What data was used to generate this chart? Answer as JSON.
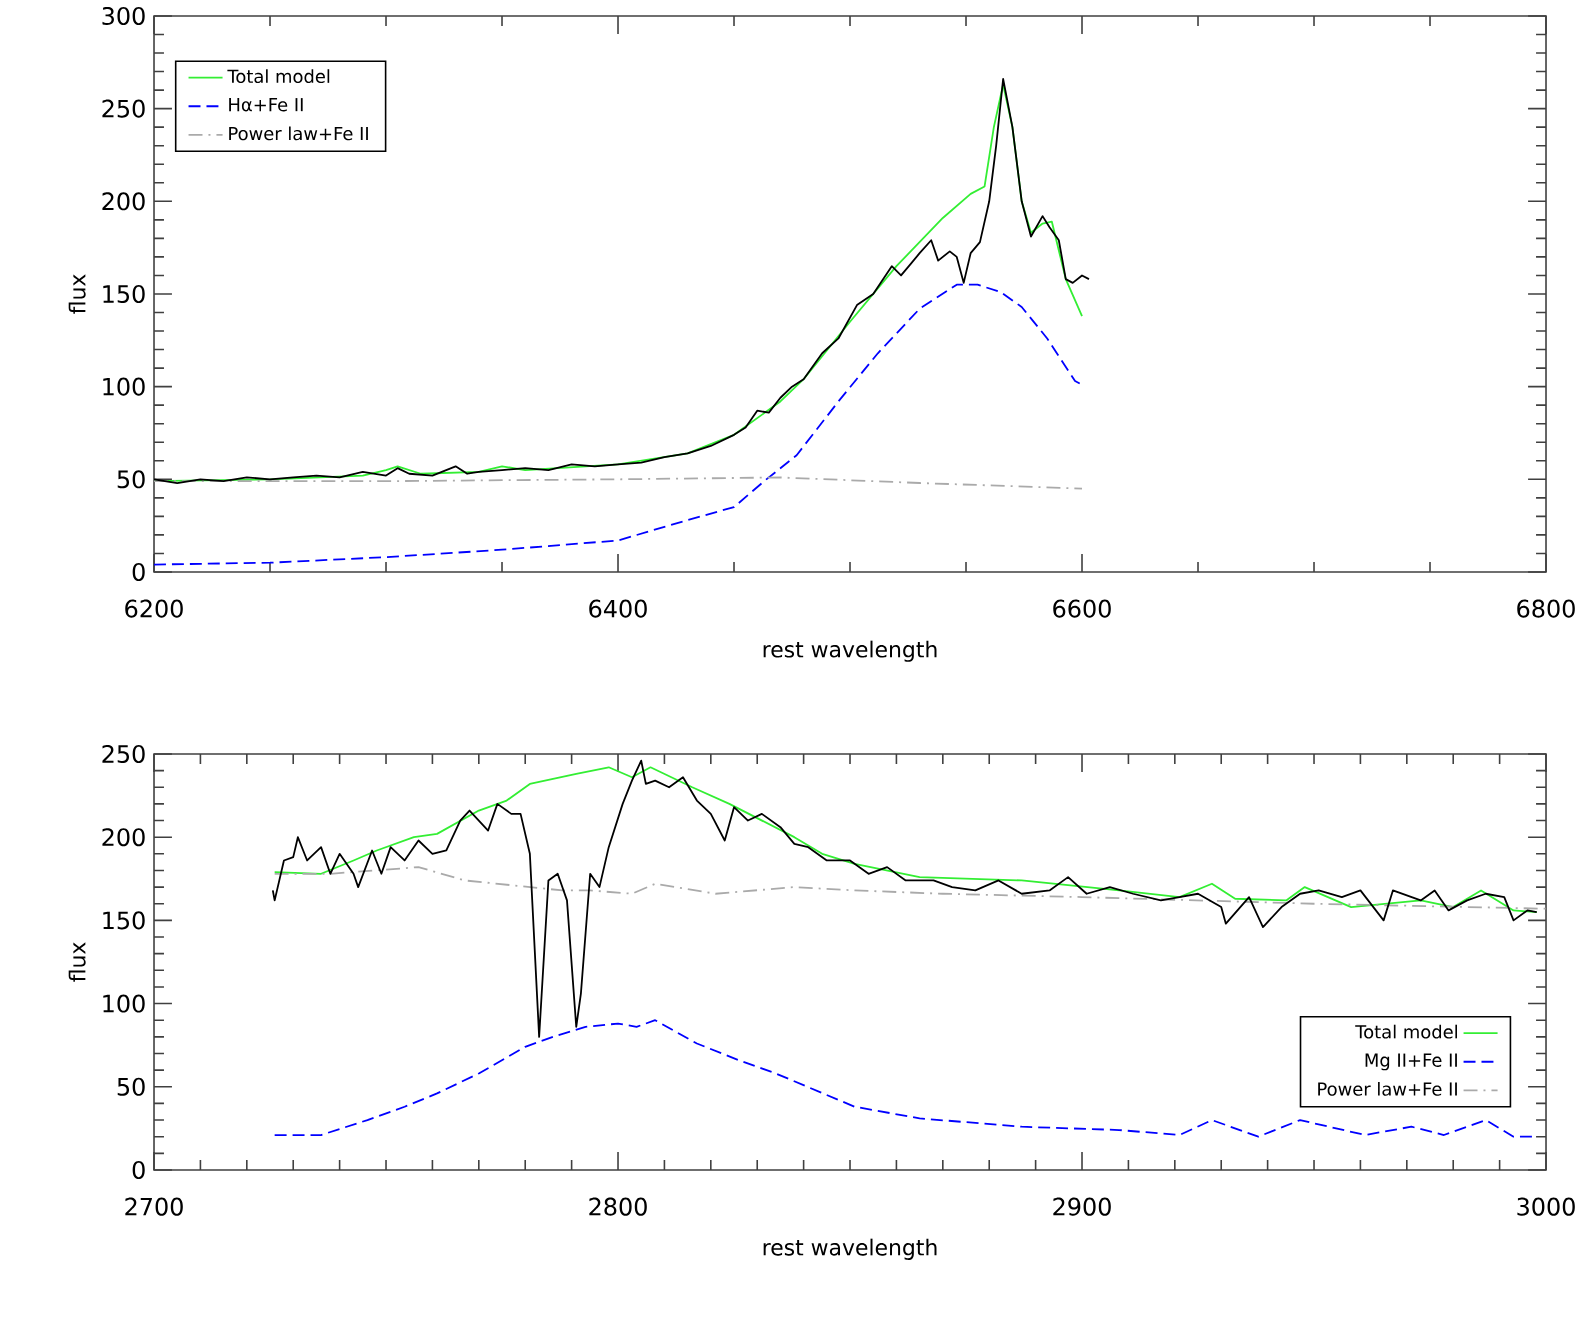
{
  "chart_data": [
    {
      "type": "line",
      "xlabel": "rest wavelength",
      "ylabel": "flux",
      "xlim": [
        6200,
        6800
      ],
      "ylim": [
        0,
        300
      ],
      "xticks": [
        6200,
        6400,
        6600,
        6800
      ],
      "yticks": [
        0,
        50,
        100,
        150,
        200,
        250,
        300
      ],
      "legend": "top left",
      "series": [
        {
          "color": "#000000",
          "line_style": "solid",
          "x": [
            6200,
            6210,
            6220,
            6230,
            6240,
            6250,
            6260,
            6270,
            6280,
            6290,
            6300,
            6305,
            6310,
            6320,
            6330,
            6335,
            6340,
            6350,
            6360,
            6370,
            6380,
            6390,
            6400,
            6410,
            6420,
            6430,
            6440,
            6450,
            6455,
            6460,
            6465,
            6470,
            6475,
            6480,
            6488,
            6495,
            6503,
            6510,
            6518,
            6522,
            6526,
            6530,
            6535,
            6538,
            6543,
            6546,
            6549,
            6552,
            6556,
            6560,
            6563,
            6566,
            6570,
            6574,
            6578,
            6583,
            6586,
            6590,
            6593,
            6596,
            6600,
            6603
          ],
          "values": [
            50,
            48,
            50,
            49,
            51,
            50,
            51,
            52,
            51,
            54,
            52,
            56,
            53,
            52,
            57,
            53,
            54,
            55,
            56,
            55,
            58,
            57,
            58,
            59,
            62,
            64,
            68,
            74,
            78,
            87,
            86,
            94,
            100,
            104,
            118,
            126,
            144,
            150,
            165,
            160,
            166,
            172,
            179,
            168,
            173,
            170,
            156,
            172,
            178,
            200,
            230,
            266,
            240,
            200,
            181,
            192,
            186,
            179,
            158,
            156,
            160,
            158
          ]
        },
        {
          "name": "Total model",
          "color": "#33ee33",
          "line_style": "solid",
          "x": [
            6200,
            6250,
            6290,
            6300,
            6305,
            6315,
            6340,
            6350,
            6360,
            6400,
            6430,
            6450,
            6470,
            6480,
            6500,
            6520,
            6540,
            6552,
            6558,
            6562,
            6566,
            6570,
            6574,
            6578,
            6583,
            6587,
            6593,
            6600
          ],
          "values": [
            49,
            50,
            52,
            55,
            57,
            53,
            54,
            57,
            55,
            58,
            64,
            74,
            92,
            104,
            135,
            165,
            191,
            204,
            208,
            240,
            263,
            240,
            200,
            183,
            188,
            189,
            158,
            138
          ]
        },
        {
          "name": "Hα+Fe II",
          "color": "#0000ff",
          "line_style": "dashed",
          "x": [
            6200,
            6250,
            6300,
            6350,
            6400,
            6430,
            6450,
            6463,
            6477,
            6495,
            6512,
            6530,
            6546,
            6555,
            6565,
            6574,
            6585,
            6597,
            6600
          ],
          "values": [
            4,
            5,
            8,
            12,
            17,
            28,
            35,
            49,
            63,
            92,
            118,
            142,
            155,
            155,
            151,
            143,
            126,
            103,
            101
          ]
        },
        {
          "name": "Power law+Fe II",
          "color": "#aaaaaa",
          "line_style": "dashdot",
          "x": [
            6200,
            6300,
            6400,
            6470,
            6530,
            6600
          ],
          "values": [
            49,
            49,
            50,
            51,
            48,
            45
          ]
        }
      ]
    },
    {
      "type": "line",
      "xlabel": "rest wavelength",
      "ylabel": "flux",
      "xlim": [
        2700,
        3000
      ],
      "ylim": [
        0,
        250
      ],
      "xticks": [
        2700,
        2800,
        2900,
        3000
      ],
      "yticks": [
        0,
        50,
        100,
        150,
        200,
        250
      ],
      "legend": "bottom right",
      "series": [
        {
          "color": "#000000",
          "line_style": "solid",
          "x": [
            2725.6,
            2726,
            2728,
            2730,
            2731,
            2733,
            2736,
            2738,
            2740,
            2743,
            2744,
            2747,
            2749,
            2751,
            2754,
            2757,
            2760,
            2763,
            2766,
            2768,
            2772,
            2774,
            2777,
            2779,
            2781,
            2783,
            2785,
            2787,
            2789,
            2791,
            2792,
            2794,
            2796,
            2798,
            2801,
            2803,
            2805,
            2806,
            2808,
            2811,
            2814,
            2817,
            2820,
            2823,
            2825,
            2828,
            2831,
            2835,
            2838,
            2841,
            2845,
            2850,
            2854,
            2858,
            2862,
            2868,
            2872,
            2877,
            2882,
            2887,
            2893,
            2897,
            2901,
            2906,
            2911,
            2917,
            2921,
            2925,
            2930,
            2931,
            2936,
            2939,
            2943,
            2947,
            2951,
            2956,
            2960,
            2965,
            2967,
            2973,
            2976,
            2979,
            2983,
            2987,
            2991,
            2993,
            2996,
            2998
          ],
          "values": [
            168,
            162,
            186,
            188,
            200,
            186,
            194,
            178,
            190,
            178,
            170,
            192,
            178,
            194,
            186,
            198,
            190,
            192,
            210,
            216,
            204,
            220,
            214,
            214,
            190,
            80,
            174,
            178,
            162,
            86,
            106,
            178,
            170,
            194,
            220,
            234,
            246,
            232,
            234,
            230,
            236,
            222,
            214,
            198,
            218,
            210,
            214,
            206,
            196,
            194,
            186,
            186,
            178,
            182,
            174,
            174,
            170,
            168,
            174,
            166,
            168,
            176,
            166,
            170,
            166,
            162,
            164,
            166,
            158,
            148,
            164,
            146,
            158,
            166,
            168,
            164,
            168,
            150,
            168,
            162,
            168,
            156,
            162,
            166,
            164,
            150,
            156,
            155
          ]
        },
        {
          "name": "Total model",
          "color": "#33ee33",
          "line_style": "solid",
          "x": [
            2726,
            2736,
            2743,
            2748,
            2756,
            2761,
            2770,
            2776,
            2781,
            2791,
            2798,
            2803,
            2807,
            2816,
            2824,
            2838,
            2844,
            2851,
            2865,
            2887,
            2908,
            2921,
            2928,
            2933,
            2944,
            2948,
            2958,
            2973,
            2980,
            2986,
            2993,
            2998
          ],
          "values": [
            179,
            178,
            186,
            192,
            200,
            202,
            216,
            222,
            232,
            238,
            242,
            236,
            242,
            230,
            220,
            200,
            190,
            184,
            176,
            174,
            168,
            164,
            172,
            163,
            162,
            170,
            158,
            162,
            158,
            168,
            156,
            155
          ]
        },
        {
          "name": "Mg II+Fe II",
          "color": "#0000ff",
          "line_style": "dashed",
          "x": [
            2726,
            2736,
            2746,
            2754,
            2761,
            2770,
            2780,
            2786,
            2793,
            2800,
            2804,
            2808,
            2817,
            2826,
            2834,
            2851,
            2865,
            2887,
            2908,
            2921,
            2928,
            2938,
            2947,
            2961,
            2971,
            2978,
            2987,
            2993,
            2998
          ],
          "values": [
            21,
            21,
            30,
            38,
            46,
            58,
            74,
            80,
            86,
            88,
            86,
            90,
            76,
            66,
            58,
            38,
            31,
            26,
            24,
            21,
            30,
            20,
            30,
            21,
            26,
            21,
            30,
            20,
            20
          ]
        },
        {
          "name": "Power law+Fe II",
          "color": "#aaaaaa",
          "line_style": "dashdot",
          "x": [
            2726,
            2738,
            2757,
            2767,
            2788,
            2794,
            2803,
            2808,
            2821,
            2838,
            2851,
            2870,
            2900,
            2950,
            3000
          ],
          "values": [
            178,
            178,
            182,
            174,
            168,
            168,
            166,
            172,
            166,
            170,
            168,
            166,
            164,
            160,
            157
          ]
        }
      ]
    }
  ]
}
